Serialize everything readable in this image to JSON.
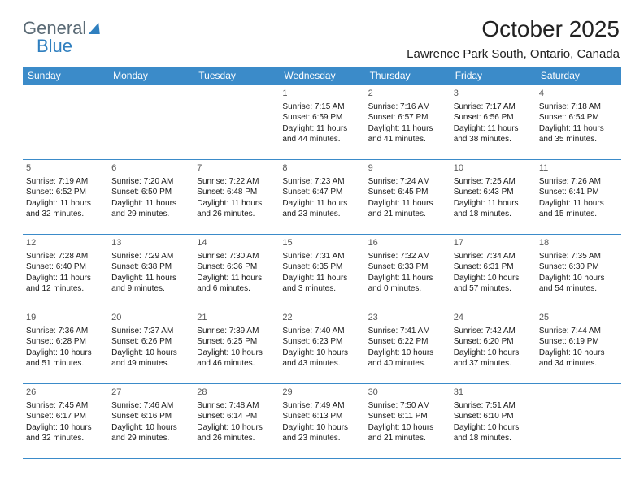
{
  "logo": {
    "text_a": "General",
    "text_b": "Blue"
  },
  "header": {
    "title": "October 2025",
    "location": "Lawrence Park South, Ontario, Canada"
  },
  "colors": {
    "header_bg": "#3b8bc9",
    "header_text": "#ffffff",
    "border": "#3b8bc9",
    "body_text": "#1a1a1a",
    "daynum": "#555555",
    "page_bg": "#ffffff",
    "logo_gray": "#5a6a75",
    "logo_blue": "#2f7fbf"
  },
  "calendar": {
    "day_headers": [
      "Sunday",
      "Monday",
      "Tuesday",
      "Wednesday",
      "Thursday",
      "Friday",
      "Saturday"
    ],
    "weeks": [
      [
        {
          "n": "",
          "sr": "",
          "ss": "",
          "dl1": "",
          "dl2": ""
        },
        {
          "n": "",
          "sr": "",
          "ss": "",
          "dl1": "",
          "dl2": ""
        },
        {
          "n": "",
          "sr": "",
          "ss": "",
          "dl1": "",
          "dl2": ""
        },
        {
          "n": "1",
          "sr": "Sunrise: 7:15 AM",
          "ss": "Sunset: 6:59 PM",
          "dl1": "Daylight: 11 hours",
          "dl2": "and 44 minutes."
        },
        {
          "n": "2",
          "sr": "Sunrise: 7:16 AM",
          "ss": "Sunset: 6:57 PM",
          "dl1": "Daylight: 11 hours",
          "dl2": "and 41 minutes."
        },
        {
          "n": "3",
          "sr": "Sunrise: 7:17 AM",
          "ss": "Sunset: 6:56 PM",
          "dl1": "Daylight: 11 hours",
          "dl2": "and 38 minutes."
        },
        {
          "n": "4",
          "sr": "Sunrise: 7:18 AM",
          "ss": "Sunset: 6:54 PM",
          "dl1": "Daylight: 11 hours",
          "dl2": "and 35 minutes."
        }
      ],
      [
        {
          "n": "5",
          "sr": "Sunrise: 7:19 AM",
          "ss": "Sunset: 6:52 PM",
          "dl1": "Daylight: 11 hours",
          "dl2": "and 32 minutes."
        },
        {
          "n": "6",
          "sr": "Sunrise: 7:20 AM",
          "ss": "Sunset: 6:50 PM",
          "dl1": "Daylight: 11 hours",
          "dl2": "and 29 minutes."
        },
        {
          "n": "7",
          "sr": "Sunrise: 7:22 AM",
          "ss": "Sunset: 6:48 PM",
          "dl1": "Daylight: 11 hours",
          "dl2": "and 26 minutes."
        },
        {
          "n": "8",
          "sr": "Sunrise: 7:23 AM",
          "ss": "Sunset: 6:47 PM",
          "dl1": "Daylight: 11 hours",
          "dl2": "and 23 minutes."
        },
        {
          "n": "9",
          "sr": "Sunrise: 7:24 AM",
          "ss": "Sunset: 6:45 PM",
          "dl1": "Daylight: 11 hours",
          "dl2": "and 21 minutes."
        },
        {
          "n": "10",
          "sr": "Sunrise: 7:25 AM",
          "ss": "Sunset: 6:43 PM",
          "dl1": "Daylight: 11 hours",
          "dl2": "and 18 minutes."
        },
        {
          "n": "11",
          "sr": "Sunrise: 7:26 AM",
          "ss": "Sunset: 6:41 PM",
          "dl1": "Daylight: 11 hours",
          "dl2": "and 15 minutes."
        }
      ],
      [
        {
          "n": "12",
          "sr": "Sunrise: 7:28 AM",
          "ss": "Sunset: 6:40 PM",
          "dl1": "Daylight: 11 hours",
          "dl2": "and 12 minutes."
        },
        {
          "n": "13",
          "sr": "Sunrise: 7:29 AM",
          "ss": "Sunset: 6:38 PM",
          "dl1": "Daylight: 11 hours",
          "dl2": "and 9 minutes."
        },
        {
          "n": "14",
          "sr": "Sunrise: 7:30 AM",
          "ss": "Sunset: 6:36 PM",
          "dl1": "Daylight: 11 hours",
          "dl2": "and 6 minutes."
        },
        {
          "n": "15",
          "sr": "Sunrise: 7:31 AM",
          "ss": "Sunset: 6:35 PM",
          "dl1": "Daylight: 11 hours",
          "dl2": "and 3 minutes."
        },
        {
          "n": "16",
          "sr": "Sunrise: 7:32 AM",
          "ss": "Sunset: 6:33 PM",
          "dl1": "Daylight: 11 hours",
          "dl2": "and 0 minutes."
        },
        {
          "n": "17",
          "sr": "Sunrise: 7:34 AM",
          "ss": "Sunset: 6:31 PM",
          "dl1": "Daylight: 10 hours",
          "dl2": "and 57 minutes."
        },
        {
          "n": "18",
          "sr": "Sunrise: 7:35 AM",
          "ss": "Sunset: 6:30 PM",
          "dl1": "Daylight: 10 hours",
          "dl2": "and 54 minutes."
        }
      ],
      [
        {
          "n": "19",
          "sr": "Sunrise: 7:36 AM",
          "ss": "Sunset: 6:28 PM",
          "dl1": "Daylight: 10 hours",
          "dl2": "and 51 minutes."
        },
        {
          "n": "20",
          "sr": "Sunrise: 7:37 AM",
          "ss": "Sunset: 6:26 PM",
          "dl1": "Daylight: 10 hours",
          "dl2": "and 49 minutes."
        },
        {
          "n": "21",
          "sr": "Sunrise: 7:39 AM",
          "ss": "Sunset: 6:25 PM",
          "dl1": "Daylight: 10 hours",
          "dl2": "and 46 minutes."
        },
        {
          "n": "22",
          "sr": "Sunrise: 7:40 AM",
          "ss": "Sunset: 6:23 PM",
          "dl1": "Daylight: 10 hours",
          "dl2": "and 43 minutes."
        },
        {
          "n": "23",
          "sr": "Sunrise: 7:41 AM",
          "ss": "Sunset: 6:22 PM",
          "dl1": "Daylight: 10 hours",
          "dl2": "and 40 minutes."
        },
        {
          "n": "24",
          "sr": "Sunrise: 7:42 AM",
          "ss": "Sunset: 6:20 PM",
          "dl1": "Daylight: 10 hours",
          "dl2": "and 37 minutes."
        },
        {
          "n": "25",
          "sr": "Sunrise: 7:44 AM",
          "ss": "Sunset: 6:19 PM",
          "dl1": "Daylight: 10 hours",
          "dl2": "and 34 minutes."
        }
      ],
      [
        {
          "n": "26",
          "sr": "Sunrise: 7:45 AM",
          "ss": "Sunset: 6:17 PM",
          "dl1": "Daylight: 10 hours",
          "dl2": "and 32 minutes."
        },
        {
          "n": "27",
          "sr": "Sunrise: 7:46 AM",
          "ss": "Sunset: 6:16 PM",
          "dl1": "Daylight: 10 hours",
          "dl2": "and 29 minutes."
        },
        {
          "n": "28",
          "sr": "Sunrise: 7:48 AM",
          "ss": "Sunset: 6:14 PM",
          "dl1": "Daylight: 10 hours",
          "dl2": "and 26 minutes."
        },
        {
          "n": "29",
          "sr": "Sunrise: 7:49 AM",
          "ss": "Sunset: 6:13 PM",
          "dl1": "Daylight: 10 hours",
          "dl2": "and 23 minutes."
        },
        {
          "n": "30",
          "sr": "Sunrise: 7:50 AM",
          "ss": "Sunset: 6:11 PM",
          "dl1": "Daylight: 10 hours",
          "dl2": "and 21 minutes."
        },
        {
          "n": "31",
          "sr": "Sunrise: 7:51 AM",
          "ss": "Sunset: 6:10 PM",
          "dl1": "Daylight: 10 hours",
          "dl2": "and 18 minutes."
        },
        {
          "n": "",
          "sr": "",
          "ss": "",
          "dl1": "",
          "dl2": ""
        }
      ]
    ]
  }
}
